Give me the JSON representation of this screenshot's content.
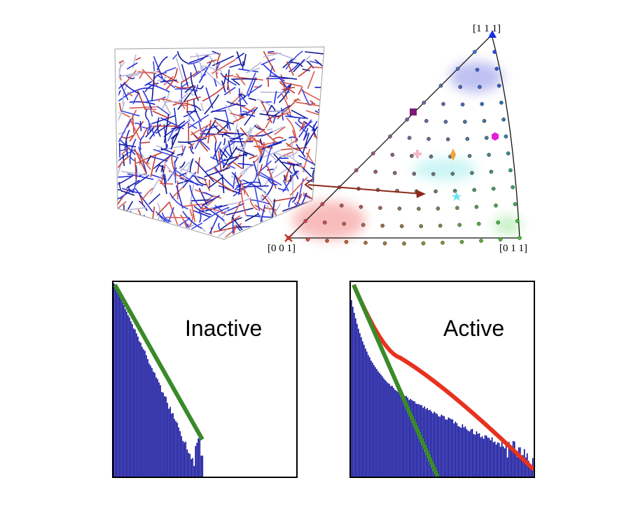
{
  "triangle": {
    "corner_labels": {
      "top": "[1 1 1]",
      "bottom_left": "[0 0 1]",
      "bottom_right": "[0 1 1]"
    },
    "colors": {
      "top_region": "#6f74e0",
      "left_region": "#f26d6d",
      "mid_region": "#7fe6e6",
      "right_region": "#9be79b",
      "arrow": "#8b2a1a",
      "square_marker": "#7a1a78",
      "hexagon_marker": "#e020d8",
      "diamond_marker": "#f5a23a",
      "plus_marker": "#f4b7c4",
      "star_marker": "#6fe3f2",
      "triangle_marker": "#1a2ee8",
      "cross_marker": "#c83226"
    }
  },
  "histograms": [
    {
      "label": "Inactive",
      "bar_color": "#0a0a9a",
      "fit_line_color": "#3a8a2a"
    },
    {
      "label": "Active",
      "bar_color": "#0a0a9a",
      "fit_line_color": "#3a8a2a",
      "curve_color": "#e8321e"
    }
  ]
}
